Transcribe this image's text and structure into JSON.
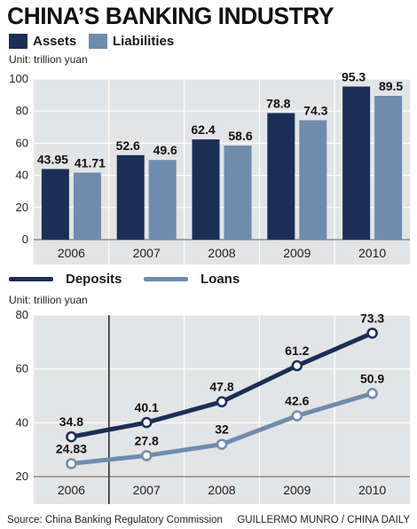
{
  "title": "CHINA'S BANKING INDUSTRY",
  "footer": {
    "source": "Source: China Banking Regulatory Commission",
    "credit": "GUILLERMO MUNRO / CHINA DAILY"
  },
  "colors": {
    "dark": "#1b2e55",
    "light": "#6f8cad",
    "panel": "#e3e4e6"
  },
  "chart_data": [
    {
      "type": "bar",
      "unit": "Unit: trillion yuan",
      "categories": [
        "2006",
        "2007",
        "2008",
        "2009",
        "2010"
      ],
      "series": [
        {
          "name": "Assets",
          "values": [
            43.95,
            52.6,
            62.4,
            78.8,
            95.3
          ],
          "labels": [
            "43.95",
            "52.6",
            "62.4",
            "78.8",
            "95.3"
          ]
        },
        {
          "name": "Liabilities",
          "values": [
            41.71,
            49.6,
            58.6,
            74.3,
            89.5
          ],
          "labels": [
            "41.71",
            "49.6",
            "58.6",
            "74.3",
            "89.5"
          ]
        }
      ],
      "ylim": [
        0,
        100
      ],
      "yticks": [
        "0",
        "20",
        "40",
        "60",
        "80",
        "100"
      ],
      "grid": true,
      "legend": "top-left"
    },
    {
      "type": "line",
      "unit": "Unit: trillion yuan",
      "categories": [
        "2006",
        "2007",
        "2008",
        "2009",
        "2010"
      ],
      "series": [
        {
          "name": "Deposits",
          "values": [
            34.8,
            40.1,
            47.8,
            61.2,
            73.3
          ],
          "labels": [
            "34.8",
            "40.1",
            "47.8",
            "61.2",
            "73.3"
          ]
        },
        {
          "name": "Loans",
          "values": [
            24.83,
            27.8,
            32,
            42.6,
            50.9
          ],
          "labels": [
            "24.83",
            "27.8",
            "32",
            "42.6",
            "50.9"
          ]
        }
      ],
      "ylim": [
        20,
        80
      ],
      "yticks": [
        "20",
        "40",
        "60",
        "80"
      ],
      "grid": true,
      "legend": "top-left"
    }
  ]
}
